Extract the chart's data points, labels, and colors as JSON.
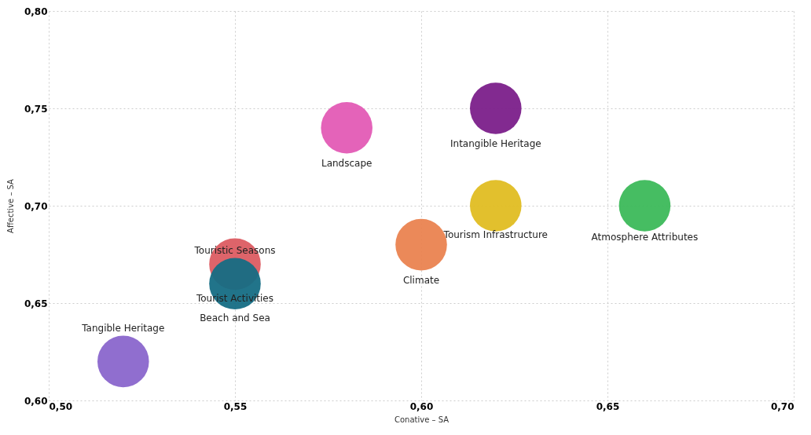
{
  "chart_data": {
    "type": "bubble",
    "xlabel": "Conative – SA",
    "ylabel": "Affective – SA",
    "xlim": [
      0.5,
      0.7
    ],
    "xticks": [
      {
        "value": 0.5,
        "label": "0,50"
      },
      {
        "value": 0.55,
        "label": "0,55"
      },
      {
        "value": 0.6,
        "label": "0,60"
      },
      {
        "value": 0.65,
        "label": "0,65"
      },
      {
        "value": 0.7,
        "label": "0,70"
      }
    ],
    "ylim": [
      0.6,
      0.8
    ],
    "yticks": [
      {
        "value": 0.6,
        "label": "0,60"
      },
      {
        "value": 0.65,
        "label": "0,65"
      },
      {
        "value": 0.7,
        "label": "0,70"
      },
      {
        "value": 0.75,
        "label": "0,75"
      },
      {
        "value": 0.8,
        "label": "0,80"
      }
    ],
    "grid": true,
    "annotations": [
      "Beach and Sea"
    ],
    "series": [
      {
        "name": "Intangible Heritage",
        "color": "#7b1f8a",
        "x": [
          0.62
        ],
        "values": [
          0.75
        ],
        "sizes": [
          1
        ]
      },
      {
        "name": "Landscape",
        "color": "#e35bb5",
        "x": [
          0.58
        ],
        "values": [
          0.74
        ],
        "sizes": [
          1
        ]
      },
      {
        "name": "Tourism Infrastructure",
        "color": "#e0bd22",
        "x": [
          0.62
        ],
        "values": [
          0.7
        ],
        "sizes": [
          1
        ]
      },
      {
        "name": "Atmosphere Attributes",
        "color": "#3cb95a",
        "x": [
          0.66
        ],
        "values": [
          0.7
        ],
        "sizes": [
          1
        ]
      },
      {
        "name": "Climate",
        "color": "#ea8350",
        "x": [
          0.6
        ],
        "values": [
          0.68
        ],
        "sizes": [
          1
        ]
      },
      {
        "name": "Touristic Seasons",
        "color": "#dc5c62",
        "x": [
          0.55
        ],
        "values": [
          0.67
        ],
        "sizes": [
          1
        ]
      },
      {
        "name": "Tourist Activities",
        "color": "#156d84",
        "x": [
          0.55
        ],
        "values": [
          0.66
        ],
        "sizes": [
          1
        ]
      },
      {
        "name": "Tangible Heritage",
        "color": "#8a66cc",
        "x": [
          0.52
        ],
        "values": [
          0.62
        ],
        "sizes": [
          1
        ]
      }
    ]
  }
}
